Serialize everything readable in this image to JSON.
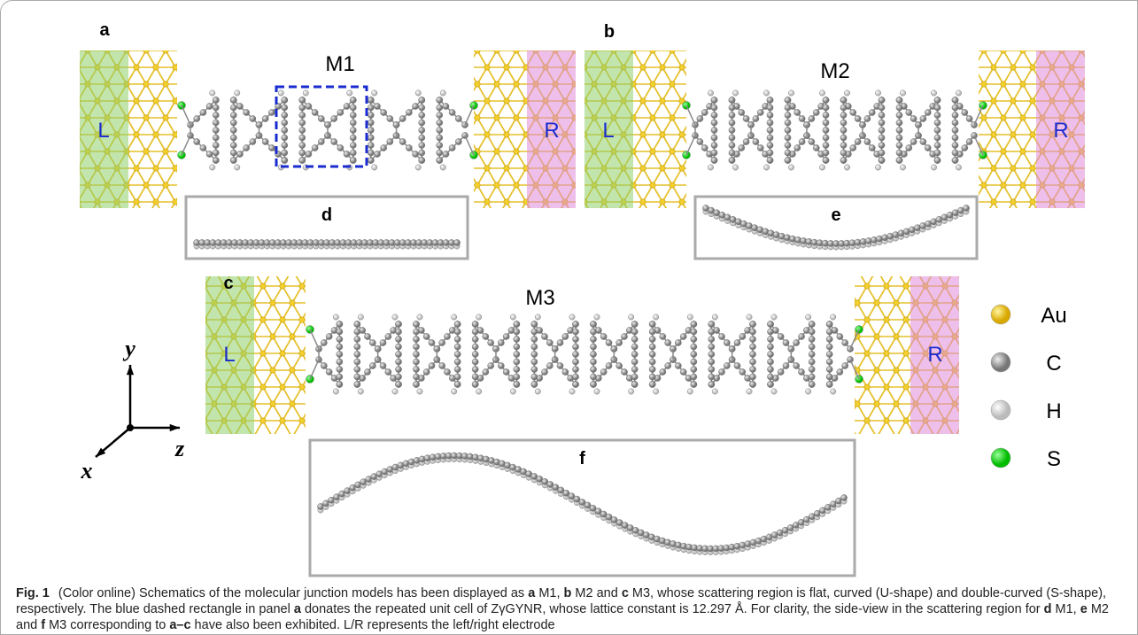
{
  "panels": [
    {
      "label": "a",
      "name": "M1",
      "left": "L",
      "right": "R",
      "side_view": "d"
    },
    {
      "label": "b",
      "name": "M2",
      "left": "L",
      "right": "R",
      "side_view": "e"
    },
    {
      "label": "c",
      "name": "M3",
      "left": "L",
      "right": "R",
      "side_view": "f"
    }
  ],
  "legend": [
    "Au",
    "C",
    "H",
    "S"
  ],
  "axes": {
    "x": "x",
    "y": "y",
    "z": "z"
  },
  "caption": {
    "label": "Fig. 1",
    "segments": [
      "(Color online) Schematics of the molecular junction models has been displayed as ",
      "a",
      " M1, ",
      "b",
      " M2 and ",
      "c",
      " M3, whose scattering region is flat, curved (U-shape) and double-curved (S-shape), respectively. The blue dashed rectangle in panel ",
      "a",
      " donates the repeated unit cell of ZγGYNR, whose lattice constant is 12.297 Å. For clarity, the side-view in the scattering region for ",
      "d",
      " M1, ",
      "e",
      " M2 and ",
      "f",
      " M3 corresponding to ",
      "a–c",
      " have also been exhibited. L/R represents the left/right electrode"
    ]
  }
}
